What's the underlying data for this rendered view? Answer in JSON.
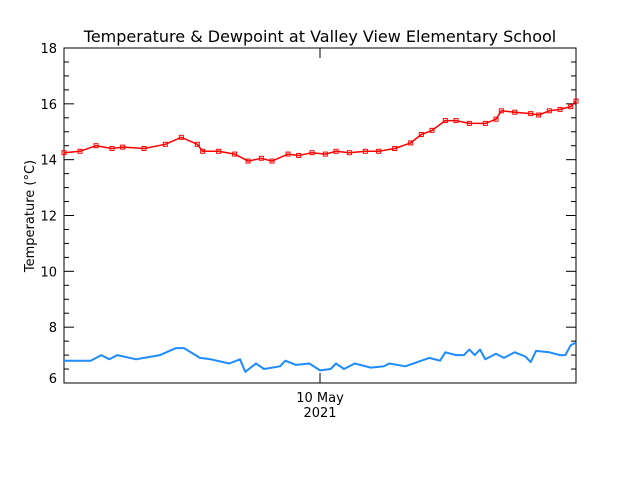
{
  "chart_data": {
    "type": "line",
    "title": "Temperature & Dewpoint at Valley View Elementary School",
    "xlabel": "",
    "ylabel": "Temperature (°C)",
    "xlim": [
      "2021-05-09T00:00",
      "2021-05-11T00:00"
    ],
    "ylim": [
      6,
      18
    ],
    "yticks": [
      6,
      8,
      10,
      12,
      14,
      16,
      18
    ],
    "xticks": [
      {
        "time": "2021-05-10T00:00",
        "label": "10 May",
        "sublabel": "2021"
      }
    ],
    "grid": false,
    "legend": "none",
    "series": [
      {
        "color": "#ff0000",
        "marker": "open-square",
        "points": [
          [
            "2021-05-09T00:00",
            14.25
          ],
          [
            "2021-05-09T01:30",
            14.3
          ],
          [
            "2021-05-09T03:00",
            14.5
          ],
          [
            "2021-05-09T04:30",
            14.4
          ],
          [
            "2021-05-09T05:30",
            14.45
          ],
          [
            "2021-05-09T07:30",
            14.4
          ],
          [
            "2021-05-09T09:30",
            14.55
          ],
          [
            "2021-05-09T11:00",
            14.8
          ],
          [
            "2021-05-09T12:30",
            14.55
          ],
          [
            "2021-05-09T13:00",
            14.3
          ],
          [
            "2021-05-09T14:30",
            14.3
          ],
          [
            "2021-05-09T16:00",
            14.2
          ],
          [
            "2021-05-09T17:15",
            13.95
          ],
          [
            "2021-05-09T18:30",
            14.05
          ],
          [
            "2021-05-09T19:30",
            13.95
          ],
          [
            "2021-05-09T21:00",
            14.2
          ],
          [
            "2021-05-09T22:00",
            14.15
          ],
          [
            "2021-05-09T23:15",
            14.25
          ],
          [
            "2021-05-10T00:30",
            14.2
          ],
          [
            "2021-05-10T01:30",
            14.3
          ],
          [
            "2021-05-10T02:45",
            14.25
          ],
          [
            "2021-05-10T04:15",
            14.3
          ],
          [
            "2021-05-10T05:30",
            14.3
          ],
          [
            "2021-05-10T07:00",
            14.4
          ],
          [
            "2021-05-10T08:30",
            14.6
          ],
          [
            "2021-05-10T09:30",
            14.9
          ],
          [
            "2021-05-10T10:30",
            15.05
          ],
          [
            "2021-05-10T11:45",
            15.4
          ],
          [
            "2021-05-10T12:45",
            15.4
          ],
          [
            "2021-05-10T14:00",
            15.3
          ],
          [
            "2021-05-10T15:30",
            15.3
          ],
          [
            "2021-05-10T16:30",
            15.45
          ],
          [
            "2021-05-10T17:00",
            15.75
          ],
          [
            "2021-05-10T18:15",
            15.7
          ],
          [
            "2021-05-10T19:45",
            15.65
          ],
          [
            "2021-05-10T20:30",
            15.6
          ],
          [
            "2021-05-10T21:30",
            15.75
          ],
          [
            "2021-05-10T22:30",
            15.8
          ],
          [
            "2021-05-10T23:30",
            15.9
          ],
          [
            "2021-05-11T00:00",
            16.1
          ]
        ]
      },
      {
        "color": "#1e8cff",
        "marker": "none",
        "points": [
          [
            "2021-05-09T00:00",
            6.8
          ],
          [
            "2021-05-09T02:30",
            6.8
          ],
          [
            "2021-05-09T03:30",
            7.0
          ],
          [
            "2021-05-09T04:15",
            6.85
          ],
          [
            "2021-05-09T05:00",
            7.0
          ],
          [
            "2021-05-09T06:45",
            6.85
          ],
          [
            "2021-05-09T09:00",
            7.0
          ],
          [
            "2021-05-09T10:30",
            7.25
          ],
          [
            "2021-05-09T11:15",
            7.25
          ],
          [
            "2021-05-09T12:45",
            6.9
          ],
          [
            "2021-05-09T13:45",
            6.85
          ],
          [
            "2021-05-09T15:30",
            6.7
          ],
          [
            "2021-05-09T16:30",
            6.85
          ],
          [
            "2021-05-09T17:00",
            6.4
          ],
          [
            "2021-05-09T18:00",
            6.7
          ],
          [
            "2021-05-09T18:45",
            6.5
          ],
          [
            "2021-05-09T20:15",
            6.6
          ],
          [
            "2021-05-09T20:45",
            6.8
          ],
          [
            "2021-05-09T21:45",
            6.65
          ],
          [
            "2021-05-09T23:00",
            6.7
          ],
          [
            "2021-05-10T00:00",
            6.45
          ],
          [
            "2021-05-10T01:00",
            6.5
          ],
          [
            "2021-05-10T01:30",
            6.7
          ],
          [
            "2021-05-10T02:15",
            6.5
          ],
          [
            "2021-05-10T03:15",
            6.7
          ],
          [
            "2021-05-10T04:45",
            6.55
          ],
          [
            "2021-05-10T06:00",
            6.6
          ],
          [
            "2021-05-10T06:30",
            6.7
          ],
          [
            "2021-05-10T08:00",
            6.6
          ],
          [
            "2021-05-10T09:30",
            6.8
          ],
          [
            "2021-05-10T10:15",
            6.9
          ],
          [
            "2021-05-10T11:15",
            6.8
          ],
          [
            "2021-05-10T11:45",
            7.1
          ],
          [
            "2021-05-10T12:45",
            7.0
          ],
          [
            "2021-05-10T13:30",
            7.0
          ],
          [
            "2021-05-10T14:00",
            7.2
          ],
          [
            "2021-05-10T14:30",
            7.0
          ],
          [
            "2021-05-10T15:00",
            7.2
          ],
          [
            "2021-05-10T15:30",
            6.85
          ],
          [
            "2021-05-10T16:30",
            7.05
          ],
          [
            "2021-05-10T17:15",
            6.9
          ],
          [
            "2021-05-10T18:15",
            7.1
          ],
          [
            "2021-05-10T19:15",
            6.95
          ],
          [
            "2021-05-10T19:45",
            6.75
          ],
          [
            "2021-05-10T20:15",
            7.15
          ],
          [
            "2021-05-10T21:30",
            7.1
          ],
          [
            "2021-05-10T22:30",
            7.0
          ],
          [
            "2021-05-10T23:00",
            7.0
          ],
          [
            "2021-05-10T23:30",
            7.35
          ],
          [
            "2021-05-11T00:00",
            7.45
          ]
        ]
      }
    ]
  }
}
